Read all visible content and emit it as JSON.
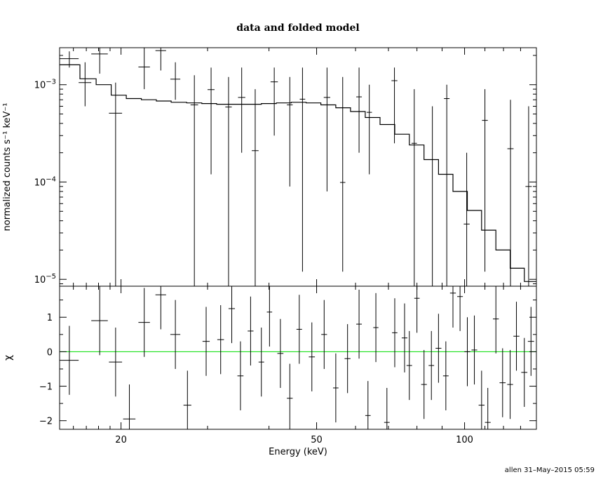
{
  "chart_data": [
    {
      "type": "scatter",
      "title": "data and folded model",
      "xlabel": "Energy (keV)",
      "ylabel": "normalized counts s⁻¹ keV⁻¹",
      "x_scale": "log",
      "y_scale": "log",
      "xlim": [
        15,
        140
      ],
      "ylim": [
        8.5e-06,
        0.0024
      ],
      "y_ticks": [
        {
          "value": 0.001,
          "mantissa": "10",
          "exp": "−3"
        },
        {
          "value": 0.0001,
          "mantissa": "10",
          "exp": "−4"
        },
        {
          "value": 1e-05,
          "mantissa": "10",
          "exp": "−5"
        }
      ],
      "data": [
        {
          "x": 15.7,
          "y": 0.00185,
          "xerr": 0.7,
          "ylo": 0.0015,
          "yhi": 0.0022
        },
        {
          "x": 16.9,
          "y": 0.00105,
          "xerr": 0.5,
          "ylo": 0.0006,
          "yhi": 0.0017
        },
        {
          "x": 18.1,
          "y": 0.00207,
          "xerr": 0.7,
          "ylo": 0.0013,
          "yhi": 0.0024
        },
        {
          "x": 19.5,
          "y": 0.00051,
          "xerr": 0.6,
          "ylo": 8.5e-06,
          "yhi": 0.00105
        },
        {
          "x": 22.3,
          "y": 0.00152,
          "xerr": 0.6,
          "ylo": 0.0009,
          "yhi": 0.0024
        },
        {
          "x": 24.1,
          "y": 0.00224,
          "xerr": 0.6,
          "ylo": 0.0014,
          "yhi": 0.0024
        },
        {
          "x": 25.8,
          "y": 0.00114,
          "xerr": 0.6,
          "ylo": 0.0007,
          "yhi": 0.0017
        },
        {
          "x": 28.2,
          "y": 0.00062,
          "xerr": 0.5,
          "ylo": 8.5e-06,
          "yhi": 0.00125
        },
        {
          "x": 30.5,
          "y": 0.00089,
          "xerr": 0.5,
          "ylo": 0.00012,
          "yhi": 0.0015
        },
        {
          "x": 33.1,
          "y": 0.00059,
          "xerr": 0.5,
          "ylo": 8.5e-06,
          "yhi": 0.0012
        },
        {
          "x": 35.2,
          "y": 0.00074,
          "xerr": 0.6,
          "ylo": 0.0002,
          "yhi": 0.0015
        },
        {
          "x": 37.5,
          "y": 0.00021,
          "xerr": 0.6,
          "ylo": 8.5e-06,
          "yhi": 0.0009
        },
        {
          "x": 41.0,
          "y": 0.00107,
          "xerr": 0.7,
          "ylo": 0.0003,
          "yhi": 0.0015
        },
        {
          "x": 44.1,
          "y": 0.00062,
          "xerr": 0.6,
          "ylo": 9e-05,
          "yhi": 0.0012
        },
        {
          "x": 46.8,
          "y": 0.00071,
          "xerr": 0.6,
          "ylo": 1.2e-05,
          "yhi": 0.0015
        },
        {
          "x": 52.5,
          "y": 0.00074,
          "xerr": 0.8,
          "ylo": 8e-05,
          "yhi": 0.0015
        },
        {
          "x": 56.5,
          "y": 9.9e-05,
          "xerr": 0.7,
          "ylo": 1.2e-05,
          "yhi": 0.0012
        },
        {
          "x": 61.0,
          "y": 0.00075,
          "xerr": 0.8,
          "ylo": 0.0002,
          "yhi": 0.0015
        },
        {
          "x": 64.0,
          "y": 0.00052,
          "xerr": 0.8,
          "ylo": 0.00012,
          "yhi": 0.001
        },
        {
          "x": 72.0,
          "y": 0.0011,
          "xerr": 1.0,
          "ylo": 0.00025,
          "yhi": 0.0015
        },
        {
          "x": 79.0,
          "y": 0.00025,
          "xerr": 1.0,
          "ylo": 8.5e-06,
          "yhi": 0.0009
        },
        {
          "x": 86.0,
          "y": 0.00017,
          "xerr": 1.2,
          "ylo": 8.5e-06,
          "yhi": 0.0006
        },
        {
          "x": 92.0,
          "y": 0.00072,
          "xerr": 1.2,
          "ylo": 8.5e-06,
          "yhi": 0.001
        },
        {
          "x": 101.0,
          "y": 3.7e-05,
          "xerr": 1.4,
          "ylo": 8.5e-06,
          "yhi": 0.0002
        },
        {
          "x": 110.0,
          "y": 0.00043,
          "xerr": 1.5,
          "ylo": 1.2e-05,
          "yhi": 0.0009
        },
        {
          "x": 124.0,
          "y": 0.00022,
          "xerr": 1.8,
          "ylo": 8.5e-06,
          "yhi": 0.0007
        },
        {
          "x": 135.0,
          "y": 9e-05,
          "xerr": 2.0,
          "ylo": 8.5e-06,
          "yhi": 0.0006
        }
      ],
      "model": {
        "x": [
          15,
          16.5,
          17.8,
          19.1,
          20.5,
          22,
          23.6,
          25.3,
          27.2,
          29.2,
          31.3,
          33.6,
          36.0,
          38.6,
          41.4,
          44.4,
          47.6,
          51.0,
          54.7,
          58.6,
          62.8,
          67.3,
          72.1,
          77.2,
          82.7,
          88.5,
          94.7,
          101.3,
          108.3,
          115.8,
          123.8,
          132.3,
          140
        ],
        "y": [
          0.0016,
          0.00115,
          0.001,
          0.00078,
          0.00072,
          0.0007,
          0.00068,
          0.00066,
          0.00065,
          0.00064,
          0.00063,
          0.00063,
          0.00063,
          0.00064,
          0.00065,
          0.00066,
          0.00065,
          0.00062,
          0.00058,
          0.00053,
          0.00046,
          0.00039,
          0.00031,
          0.00024,
          0.00017,
          0.00012,
          8e-05,
          5.1e-05,
          3.2e-05,
          2e-05,
          1.3e-05,
          9.5e-06,
          8.5e-06
        ]
      }
    },
    {
      "type": "scatter",
      "xlabel": "Energy (keV)",
      "ylabel": "χ",
      "x_scale": "log",
      "xlim": [
        15,
        140
      ],
      "ylim": [
        -2.25,
        1.9
      ],
      "y_ticks": [
        1,
        0,
        -1,
        -2
      ],
      "y_tick_labels": [
        "1",
        "0",
        "−1",
        "−2"
      ],
      "x_ticks": [
        20,
        50,
        100
      ],
      "x_tick_labels": [
        "20",
        "50",
        "100"
      ],
      "reference_line": {
        "y": 0,
        "color": "#00dd00"
      },
      "data": [
        {
          "x": 15.7,
          "y": -0.25,
          "xerr": 0.7,
          "ylo": -1.25,
          "yhi": 0.75
        },
        {
          "x": 18.1,
          "y": 0.9,
          "xerr": 0.7,
          "ylo": -0.1,
          "yhi": 1.9
        },
        {
          "x": 19.5,
          "y": -0.3,
          "xerr": 0.6,
          "ylo": -1.3,
          "yhi": 0.7
        },
        {
          "x": 20.8,
          "y": -1.95,
          "xerr": 0.6,
          "ylo": -2.25,
          "yhi": -0.95
        },
        {
          "x": 22.3,
          "y": 0.85,
          "xerr": 0.6,
          "ylo": -0.15,
          "yhi": 1.85
        },
        {
          "x": 24.1,
          "y": 1.65,
          "xerr": 0.6,
          "ylo": 0.65,
          "yhi": 1.9
        },
        {
          "x": 25.8,
          "y": 0.5,
          "xerr": 0.6,
          "ylo": -0.5,
          "yhi": 1.5
        },
        {
          "x": 27.3,
          "y": -1.55,
          "xerr": 0.5,
          "ylo": -2.25,
          "yhi": -0.55
        },
        {
          "x": 29.8,
          "y": 0.3,
          "xerr": 0.5,
          "ylo": -0.7,
          "yhi": 1.3
        },
        {
          "x": 31.9,
          "y": 0.35,
          "xerr": 0.5,
          "ylo": -0.65,
          "yhi": 1.35
        },
        {
          "x": 33.6,
          "y": 1.25,
          "xerr": 0.5,
          "ylo": 0.25,
          "yhi": 1.9
        },
        {
          "x": 35.0,
          "y": -0.7,
          "xerr": 0.5,
          "ylo": -1.7,
          "yhi": 0.3
        },
        {
          "x": 36.7,
          "y": 0.6,
          "xerr": 0.5,
          "ylo": -0.4,
          "yhi": 1.6
        },
        {
          "x": 38.6,
          "y": -0.3,
          "xerr": 0.5,
          "ylo": -1.3,
          "yhi": 0.7
        },
        {
          "x": 40.1,
          "y": 1.15,
          "xerr": 0.5,
          "ylo": 0.15,
          "yhi": 1.9
        },
        {
          "x": 42.2,
          "y": -0.05,
          "xerr": 0.6,
          "ylo": -1.05,
          "yhi": 0.95
        },
        {
          "x": 44.1,
          "y": -1.35,
          "xerr": 0.6,
          "ylo": -2.25,
          "yhi": -0.35
        },
        {
          "x": 46.1,
          "y": 0.65,
          "xerr": 0.6,
          "ylo": -0.35,
          "yhi": 1.65
        },
        {
          "x": 48.9,
          "y": -0.15,
          "xerr": 0.7,
          "ylo": -1.15,
          "yhi": 0.85
        },
        {
          "x": 51.8,
          "y": 0.5,
          "xerr": 0.7,
          "ylo": -0.5,
          "yhi": 1.5
        },
        {
          "x": 54.7,
          "y": -1.05,
          "xerr": 0.7,
          "ylo": -2.05,
          "yhi": -0.05
        },
        {
          "x": 57.8,
          "y": -0.2,
          "xerr": 0.8,
          "ylo": -1.2,
          "yhi": 0.8
        },
        {
          "x": 61.0,
          "y": 0.8,
          "xerr": 0.8,
          "ylo": -0.2,
          "yhi": 1.8
        },
        {
          "x": 63.6,
          "y": -1.85,
          "xerr": 0.8,
          "ylo": -2.25,
          "yhi": -0.85
        },
        {
          "x": 66.0,
          "y": 0.7,
          "xerr": 0.8,
          "ylo": -0.3,
          "yhi": 1.7
        },
        {
          "x": 69.5,
          "y": -2.05,
          "xerr": 0.9,
          "ylo": -2.25,
          "yhi": -1.05
        },
        {
          "x": 72.1,
          "y": 0.55,
          "xerr": 0.9,
          "ylo": -0.45,
          "yhi": 1.55
        },
        {
          "x": 75.5,
          "y": 0.4,
          "xerr": 1.0,
          "ylo": -0.6,
          "yhi": 1.4
        },
        {
          "x": 77.2,
          "y": -0.4,
          "xerr": 1.0,
          "ylo": -1.4,
          "yhi": 0.6
        },
        {
          "x": 80.0,
          "y": 1.55,
          "xerr": 1.0,
          "ylo": 0.55,
          "yhi": 1.9
        },
        {
          "x": 82.7,
          "y": -0.95,
          "xerr": 1.1,
          "ylo": -1.95,
          "yhi": 0.05
        },
        {
          "x": 85.6,
          "y": -0.4,
          "xerr": 1.1,
          "ylo": -1.4,
          "yhi": 0.6
        },
        {
          "x": 88.5,
          "y": 0.1,
          "xerr": 1.2,
          "ylo": -0.9,
          "yhi": 1.1
        },
        {
          "x": 91.6,
          "y": -0.7,
          "xerr": 1.2,
          "ylo": -1.7,
          "yhi": 0.3
        },
        {
          "x": 94.7,
          "y": 1.7,
          "xerr": 1.3,
          "ylo": 0.7,
          "yhi": 1.9
        },
        {
          "x": 97.9,
          "y": 1.6,
          "xerr": 1.3,
          "ylo": 0.6,
          "yhi": 1.9
        },
        {
          "x": 101.3,
          "y": 0.0,
          "xerr": 1.4,
          "ylo": -1.0,
          "yhi": 1.0
        },
        {
          "x": 104.7,
          "y": 0.05,
          "xerr": 1.4,
          "ylo": -0.95,
          "yhi": 1.05
        },
        {
          "x": 108.3,
          "y": -1.55,
          "xerr": 1.5,
          "ylo": -2.25,
          "yhi": -0.55
        },
        {
          "x": 111.5,
          "y": -2.05,
          "xerr": 1.5,
          "ylo": -2.25,
          "yhi": -1.05
        },
        {
          "x": 115.8,
          "y": 0.95,
          "xerr": 1.6,
          "ylo": -0.05,
          "yhi": 1.9
        },
        {
          "x": 119.5,
          "y": -0.9,
          "xerr": 1.7,
          "ylo": -1.9,
          "yhi": 0.1
        },
        {
          "x": 123.8,
          "y": -0.95,
          "xerr": 1.7,
          "ylo": -1.95,
          "yhi": 0.05
        },
        {
          "x": 127.5,
          "y": 0.45,
          "xerr": 1.8,
          "ylo": -0.55,
          "yhi": 1.45
        },
        {
          "x": 132.3,
          "y": -0.6,
          "xerr": 1.9,
          "ylo": -1.6,
          "yhi": 0.4
        },
        {
          "x": 136.5,
          "y": 0.3,
          "xerr": 2.0,
          "ylo": -0.7,
          "yhi": 1.3
        }
      ]
    }
  ],
  "footer": "allen 31–May–2015 05:59"
}
